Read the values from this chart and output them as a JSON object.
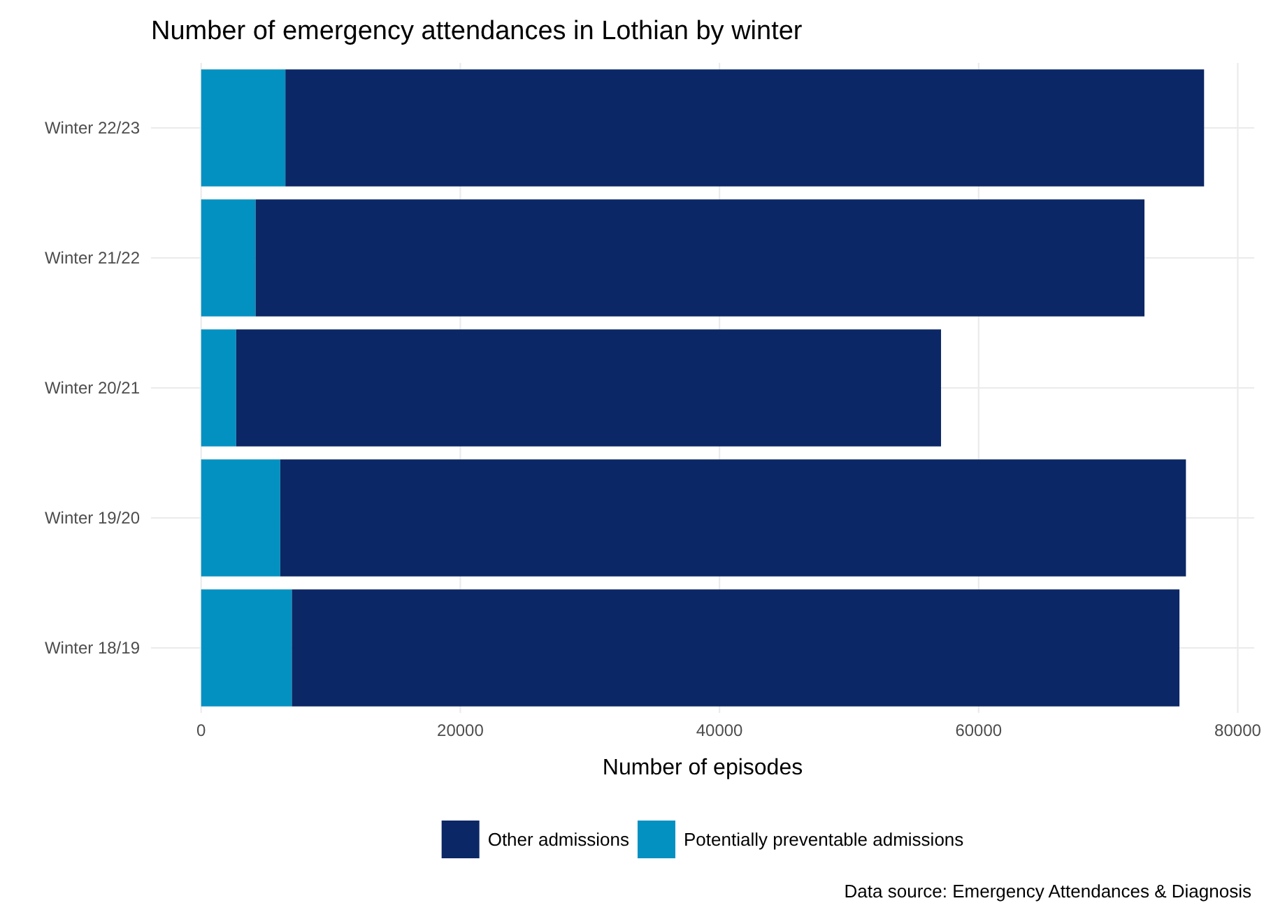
{
  "chart_data": {
    "type": "bar",
    "title": "Number of emergency attendances in Lothian by winter",
    "orientation": "horizontal",
    "stacked": true,
    "categories": [
      "Winter 22/23",
      "Winter 21/22",
      "Winter 20/21",
      "Winter 19/20",
      "Winter 18/19"
    ],
    "series": [
      {
        "name": "Potentially preventable admissions",
        "color": "#0391c2",
        "values": [
          6500,
          4200,
          2700,
          6100,
          7000
        ]
      },
      {
        "name": "Other admissions",
        "color": "#0b2765",
        "values": [
          70900,
          68600,
          54400,
          69900,
          68500
        ]
      }
    ],
    "xlabel": "Number of episodes",
    "xlim": [
      -3870,
      81270
    ],
    "xticks": [
      0,
      20000,
      40000,
      60000,
      80000
    ],
    "grid": true,
    "legend": "bottom",
    "annotations": [
      "Data source: Emergency Attendances & Diagnosis"
    ]
  }
}
